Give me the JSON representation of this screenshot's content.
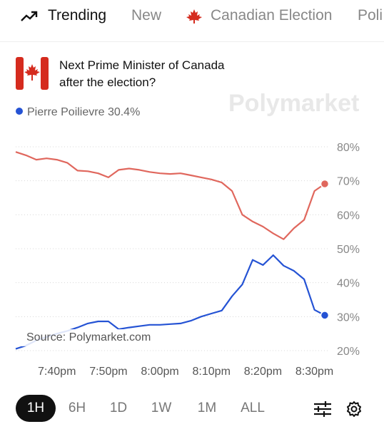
{
  "nav": {
    "tabs": [
      "Trending",
      "New",
      "Canadian Election",
      "Poli"
    ],
    "active": "Trending"
  },
  "header": {
    "title": "Next Prime Minister of Canada after the election?"
  },
  "watermark": "Polymarket",
  "source": "Source: Polymarket.com",
  "time_ranges": {
    "options": [
      "1H",
      "6H",
      "1D",
      "1W",
      "1M",
      "ALL"
    ],
    "selected": "1H"
  },
  "chart_data": {
    "type": "line",
    "x": [
      1172,
      1174,
      1176,
      1178,
      1180,
      1182,
      1184,
      1186,
      1188,
      1190,
      1192,
      1194,
      1196,
      1198,
      1200,
      1202,
      1204,
      1206,
      1208,
      1210,
      1212,
      1214,
      1216,
      1218,
      1220,
      1222,
      1224,
      1226,
      1228,
      1230,
      1232
    ],
    "series": [
      {
        "color": "#e0675d",
        "values": [
          78.5,
          77.5,
          76.2,
          76.6,
          76.2,
          75.3,
          73.0,
          72.8,
          72.2,
          71.0,
          73.2,
          73.6,
          73.2,
          72.6,
          72.2,
          72.0,
          72.2,
          71.6,
          71.0,
          70.4,
          69.5,
          67.0,
          60.0,
          58.0,
          56.5,
          54.5,
          52.8,
          56.0,
          58.5,
          67.0,
          69.1
        ]
      },
      {
        "name": "Pierre Poilievre",
        "color": "#2553d4",
        "last_label": "30.4%",
        "values": [
          20.5,
          21.5,
          23.0,
          24.0,
          25.0,
          25.8,
          26.8,
          28.0,
          28.6,
          28.6,
          26.3,
          26.8,
          27.2,
          27.6,
          27.6,
          27.8,
          28.0,
          28.8,
          30.0,
          30.9,
          31.8,
          36.0,
          39.5,
          46.7,
          45.2,
          48.1,
          45.0,
          43.5,
          41.0,
          32.0,
          30.4
        ]
      }
    ],
    "xlim": [
      1172,
      1232
    ],
    "xticks": [
      {
        "value": 1180,
        "label": "7:40pm"
      },
      {
        "value": 1190,
        "label": "7:50pm"
      },
      {
        "value": 1200,
        "label": "8:00pm"
      },
      {
        "value": 1210,
        "label": "8:10pm"
      },
      {
        "value": 1220,
        "label": "8:20pm"
      },
      {
        "value": 1230,
        "label": "8:30pm"
      }
    ],
    "ylim": [
      20,
      80
    ],
    "yticks": [
      {
        "value": 20,
        "label": "20%"
      },
      {
        "value": 30,
        "label": "30%"
      },
      {
        "value": 40,
        "label": "40%"
      },
      {
        "value": 50,
        "label": "50%"
      },
      {
        "value": 60,
        "label": "60%"
      },
      {
        "value": 70,
        "label": "70%"
      },
      {
        "value": 80,
        "label": "80%"
      }
    ],
    "grid": true
  }
}
